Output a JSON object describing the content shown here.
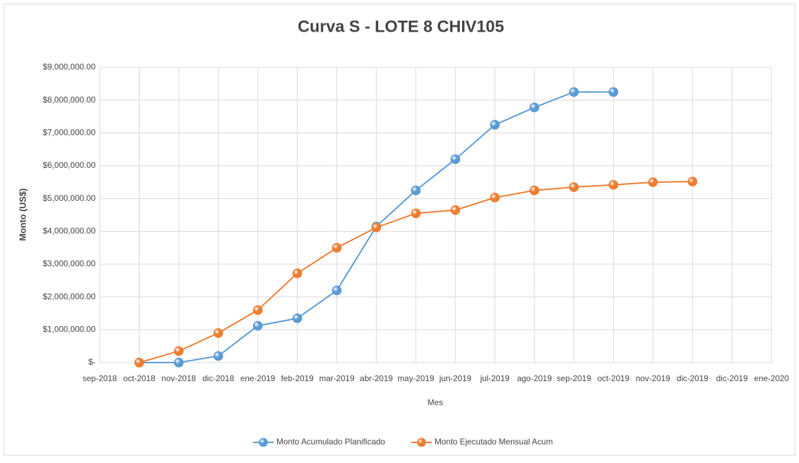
{
  "chart_data": {
    "type": "line",
    "title": "Curva S - LOTE 8 CHIV105",
    "x_label": "Mes",
    "y_label": "Monto (US$)",
    "categories": [
      "sep-2018",
      "oct-2018",
      "nov-2018",
      "dic-2018",
      "ene-2019",
      "feb-2019",
      "mar-2019",
      "abr-2019",
      "may-2019",
      "jun-2019",
      "jul-2019",
      "ago-2019",
      "sep-2019",
      "oct-2019",
      "nov-2019",
      "dic-2019",
      "dic-2019",
      "ene-2020"
    ],
    "series": [
      {
        "name": "Monto Acumulado Planificado",
        "color": "#5b9bd5",
        "values": [
          null,
          0,
          0,
          200000,
          1120000,
          1350000,
          2200000,
          4150000,
          5250000,
          6200000,
          7250000,
          7780000,
          8250000,
          8250000,
          null,
          null,
          null,
          null
        ]
      },
      {
        "name": "Monto Ejecutado Mensual Acum",
        "color": "#ed7d31",
        "values": [
          null,
          0,
          350000,
          900000,
          1600000,
          2720000,
          3500000,
          4120000,
          4550000,
          4650000,
          5030000,
          5250000,
          5350000,
          5420000,
          5500000,
          5520000,
          null,
          null
        ]
      }
    ],
    "ylim": [
      0,
      9000000
    ],
    "yticks": [
      {
        "value": 0,
        "label": "$-"
      },
      {
        "value": 1000000,
        "label": "$1,000,000.00"
      },
      {
        "value": 2000000,
        "label": "$2,000,000.00"
      },
      {
        "value": 3000000,
        "label": "$3,000,000.00"
      },
      {
        "value": 4000000,
        "label": "$4,000,000.00"
      },
      {
        "value": 5000000,
        "label": "$5,000,000.00"
      },
      {
        "value": 6000000,
        "label": "$6,000,000.00"
      },
      {
        "value": 7000000,
        "label": "$7,000,000.00"
      },
      {
        "value": 8000000,
        "label": "$8,000,000.00"
      },
      {
        "value": 9000000,
        "label": "$9,000,000.00"
      }
    ],
    "grid": true,
    "legend": "bottom"
  }
}
